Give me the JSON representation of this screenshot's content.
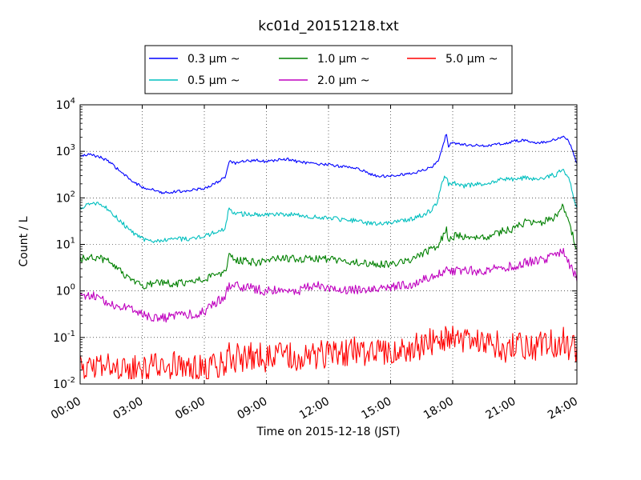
{
  "chart_data": {
    "type": "line",
    "title": "kc01d_20151218.txt",
    "xlabel": "Time on 2015-12-18 (JST)",
    "ylabel": "Count / L",
    "x_unit": "hours",
    "xlim": [
      0,
      24
    ],
    "ylim": [
      0.01,
      10000
    ],
    "yscale": "log",
    "grid": true,
    "legend_position": "top",
    "x_ticks": [
      "00:00",
      "03:00",
      "06:00",
      "09:00",
      "12:00",
      "15:00",
      "18:00",
      "21:00",
      "24:00"
    ],
    "y_ticks": [
      {
        "base": "10",
        "exp": "-2"
      },
      {
        "base": "10",
        "exp": "-1"
      },
      {
        "base": "10",
        "exp": "0"
      },
      {
        "base": "10",
        "exp": "1"
      },
      {
        "base": "10",
        "exp": "2"
      },
      {
        "base": "10",
        "exp": "3"
      },
      {
        "base": "10",
        "exp": "4"
      }
    ],
    "series": [
      {
        "name": "0.3 μm ~",
        "color": "#0000ff",
        "x": [
          0,
          0.5,
          1,
          1.5,
          2,
          2.5,
          3,
          3.5,
          4,
          4.5,
          5,
          5.5,
          6,
          6.5,
          7,
          7.2,
          7.5,
          8,
          8.5,
          9,
          9.5,
          10,
          10.5,
          11,
          11.5,
          12,
          12.5,
          13,
          13.5,
          14,
          14.5,
          15,
          15.5,
          16,
          16.5,
          17,
          17.3,
          17.5,
          17.7,
          17.8,
          18,
          18.2,
          18.5,
          19,
          19.5,
          20,
          20.5,
          21,
          21.5,
          22,
          22.5,
          23,
          23.3,
          23.6,
          24
        ],
        "values": [
          800,
          850,
          750,
          550,
          350,
          230,
          170,
          150,
          130,
          135,
          140,
          150,
          160,
          200,
          280,
          600,
          550,
          620,
          640,
          600,
          650,
          680,
          600,
          560,
          520,
          520,
          480,
          460,
          420,
          320,
          290,
          300,
          320,
          330,
          380,
          470,
          600,
          1300,
          2400,
          1300,
          1550,
          1450,
          1400,
          1350,
          1300,
          1400,
          1450,
          1700,
          1700,
          1500,
          1600,
          1800,
          2100,
          1700,
          560
        ]
      },
      {
        "name": "0.5 μm ~",
        "color": "#00bfbf",
        "x": [
          0,
          0.5,
          1,
          1.5,
          2,
          2.5,
          3,
          3.5,
          4,
          4.5,
          5,
          5.5,
          6,
          6.5,
          7,
          7.2,
          7.5,
          8,
          8.5,
          9,
          9.5,
          10,
          10.5,
          11,
          11.5,
          12,
          12.5,
          13,
          13.5,
          14,
          14.5,
          15,
          15.5,
          16,
          16.5,
          17,
          17.3,
          17.5,
          17.7,
          17.8,
          18,
          18.2,
          18.5,
          19,
          19.5,
          20,
          20.5,
          21,
          21.5,
          22,
          22.5,
          23,
          23.3,
          23.6,
          24
        ],
        "values": [
          60,
          80,
          75,
          50,
          30,
          18,
          13,
          12,
          12,
          13,
          13,
          14,
          15,
          18,
          22,
          60,
          45,
          45,
          45,
          42,
          45,
          45,
          42,
          40,
          38,
          36,
          35,
          33,
          32,
          28,
          29,
          30,
          32,
          35,
          42,
          55,
          90,
          250,
          300,
          190,
          220,
          200,
          180,
          190,
          200,
          230,
          250,
          250,
          270,
          260,
          280,
          320,
          400,
          280,
          55
        ]
      },
      {
        "name": "1.0 μm ~",
        "color": "#008000",
        "x": [
          0,
          0.5,
          1,
          1.5,
          2,
          2.5,
          3,
          3.5,
          4,
          4.5,
          5,
          5.5,
          6,
          6.5,
          7,
          7.2,
          7.5,
          8,
          8.5,
          9,
          9.5,
          10,
          10.5,
          11,
          11.5,
          12,
          12.5,
          13,
          13.5,
          14,
          14.5,
          15,
          15.5,
          16,
          16.5,
          17,
          17.3,
          17.5,
          17.7,
          17.8,
          18,
          18.2,
          18.5,
          19,
          19.5,
          20,
          20.5,
          21,
          21.5,
          22,
          22.5,
          23,
          23.3,
          23.6,
          24
        ],
        "values": [
          5,
          5.2,
          5,
          4,
          2.5,
          1.7,
          1.3,
          1.4,
          1.5,
          1.4,
          1.5,
          1.6,
          1.8,
          2.1,
          2.5,
          6,
          4.5,
          4.5,
          4,
          4.5,
          5,
          5,
          4.8,
          5,
          4.8,
          4.8,
          4.5,
          4.2,
          4,
          3.8,
          3.7,
          3.8,
          4,
          4.5,
          6,
          8,
          10,
          14,
          20,
          12,
          14,
          16,
          14,
          15,
          14,
          16,
          20,
          22,
          30,
          28,
          32,
          40,
          65,
          30,
          8
        ]
      },
      {
        "name": "2.0 μm ~",
        "color": "#bf00bf",
        "x": [
          0,
          0.5,
          1,
          1.5,
          2,
          2.5,
          3,
          3.5,
          4,
          4.5,
          5,
          5.5,
          6,
          6.5,
          7,
          7.2,
          7.5,
          8,
          8.5,
          9,
          9.5,
          10,
          10.5,
          11,
          11.5,
          12,
          12.5,
          13,
          13.5,
          14,
          14.5,
          15,
          15.5,
          16,
          16.5,
          17,
          17.3,
          17.5,
          17.7,
          17.8,
          18,
          18.2,
          18.5,
          19,
          19.5,
          20,
          20.5,
          21,
          21.5,
          22,
          22.5,
          23,
          23.3,
          23.6,
          24
        ],
        "values": [
          0.7,
          0.8,
          0.7,
          0.5,
          0.45,
          0.4,
          0.3,
          0.28,
          0.26,
          0.28,
          0.3,
          0.32,
          0.35,
          0.55,
          0.8,
          1.3,
          1.3,
          1.2,
          1.1,
          1.0,
          1.1,
          1.1,
          1.0,
          1.2,
          1.3,
          1.2,
          1.1,
          1.0,
          1.1,
          1.1,
          1.2,
          1.2,
          1.3,
          1.4,
          1.7,
          2.0,
          2.2,
          2.5,
          2.8,
          2.5,
          2.6,
          2.7,
          2.7,
          2.8,
          2.5,
          3.0,
          3.2,
          3.5,
          4.0,
          4.5,
          5.0,
          6.0,
          7.5,
          4.0,
          1.9
        ]
      },
      {
        "name": "5.0 μm ~",
        "color": "#ff0000",
        "x": [
          0,
          0.5,
          1,
          1.5,
          2,
          2.5,
          3,
          3.5,
          4,
          4.5,
          5,
          5.5,
          6,
          6.5,
          7,
          7.2,
          7.5,
          8,
          8.5,
          9,
          9.5,
          10,
          10.5,
          11,
          11.5,
          12,
          12.5,
          13,
          13.5,
          14,
          14.5,
          15,
          15.5,
          16,
          16.5,
          17,
          17.3,
          17.5,
          17.7,
          17.8,
          18,
          18.2,
          18.5,
          19,
          19.5,
          20,
          20.5,
          21,
          21.5,
          22,
          22.5,
          23,
          23.3,
          23.6,
          24
        ],
        "values": [
          0.02,
          0.03,
          0.02,
          0.025,
          0.02,
          0.02,
          0.02,
          0.025,
          0.02,
          0.025,
          0.02,
          0.02,
          0.02,
          0.025,
          0.03,
          0.04,
          0.035,
          0.04,
          0.04,
          0.035,
          0.04,
          0.045,
          0.04,
          0.045,
          0.04,
          0.05,
          0.045,
          0.05,
          0.05,
          0.045,
          0.05,
          0.05,
          0.055,
          0.06,
          0.07,
          0.08,
          0.08,
          0.09,
          0.1,
          0.08,
          0.09,
          0.09,
          0.08,
          0.08,
          0.07,
          0.07,
          0.06,
          0.06,
          0.07,
          0.06,
          0.07,
          0.08,
          0.09,
          0.06,
          0.05
        ]
      }
    ]
  }
}
